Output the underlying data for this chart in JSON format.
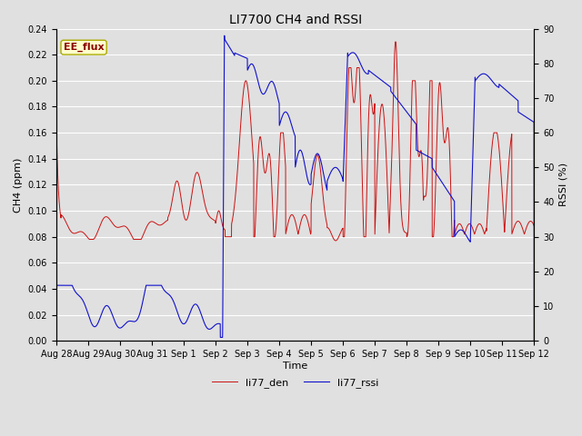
{
  "title": "LI7700 CH4 and RSSI",
  "xlabel": "Time",
  "ylabel_left": "CH4 (ppm)",
  "ylabel_right": "RSSI (%)",
  "legend_label": "EE_flux",
  "series1_label": "li77_den",
  "series2_label": "li77_rssi",
  "series1_color": "#cc1111",
  "series2_color": "#1111cc",
  "ylim_left": [
    0.0,
    0.24
  ],
  "ylim_right": [
    0,
    90
  ],
  "xtick_labels": [
    "Aug 28",
    "Aug 29",
    "Aug 30",
    "Aug 31",
    "Sep 1",
    "Sep 2",
    "Sep 3",
    "Sep 4",
    "Sep 5",
    "Sep 6",
    "Sep 7",
    "Sep 8",
    "Sep 9",
    "Sep 10",
    "Sep 11",
    "Sep 12"
  ],
  "background_color": "#e0e0e0",
  "plot_bg_color": "#e0e0e0",
  "grid_color": "#ffffff",
  "title_fontsize": 10,
  "axis_label_fontsize": 8,
  "tick_fontsize": 7,
  "legend_fontsize": 8,
  "linewidth_ch4": 0.7,
  "linewidth_rssi": 0.8
}
